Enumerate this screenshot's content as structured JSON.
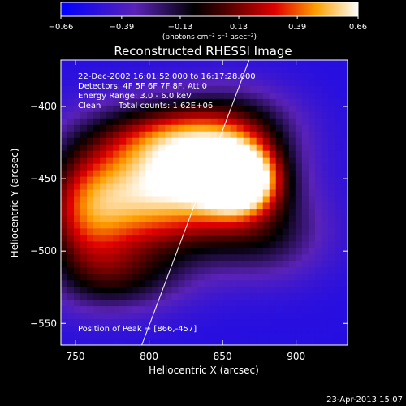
{
  "chart_data": {
    "type": "heatmap",
    "title": "Reconstructed RHESSI Image",
    "xlabel": "Heliocentric X (arcsec)",
    "ylabel": "Heliocentric Y (arcsec)",
    "xlim": [
      740,
      935
    ],
    "ylim": [
      -565,
      -368
    ],
    "xticks": [
      750,
      800,
      850,
      900
    ],
    "yticks": [
      -400,
      -450,
      -500,
      -550
    ],
    "xtick_labels": [
      "750",
      "800",
      "850",
      "900"
    ],
    "ytick_labels": [
      "−400",
      "−450",
      "−500",
      "−550"
    ],
    "colorbar": {
      "range": [
        -0.66,
        0.66
      ],
      "tick_values": [
        -0.66,
        -0.39,
        -0.13,
        0.13,
        0.39,
        0.66
      ],
      "tick_labels": [
        "−0.66",
        "−0.39",
        "−0.13",
        "0.13",
        "0.39",
        "0.66"
      ],
      "units_label": "(photons cm⁻² s⁻¹ asec⁻²)"
    },
    "annotations": {
      "time_range": "22-Dec-2002 16:01:52.000 to 16:17:28.000",
      "detectors": "Detectors: 4F 5F 6F 7F 8F, Att 0",
      "energy": "Energy Range: 3.0 - 6.0 keV",
      "method": "Clean",
      "total_counts": "Total counts: 1.62E+06",
      "peak": "Position of Peak = [866,-457]"
    },
    "peak_position": [
      866,
      -457
    ],
    "sources": [
      {
        "x": 862,
        "y": -450,
        "amp": 0.7,
        "sx": 18,
        "sy": 16
      },
      {
        "x": 835,
        "y": -450,
        "amp": 0.5,
        "sx": 38,
        "sy": 28
      },
      {
        "x": 790,
        "y": -465,
        "amp": 0.42,
        "sx": 36,
        "sy": 34
      },
      {
        "x": 755,
        "y": -475,
        "amp": 0.32,
        "sx": 22,
        "sy": 32
      },
      {
        "x": 820,
        "y": -420,
        "amp": 0.26,
        "sx": 38,
        "sy": 16
      },
      {
        "x": 880,
        "y": -490,
        "amp": 0.2,
        "sx": 30,
        "sy": 22
      },
      {
        "x": 780,
        "y": -520,
        "amp": 0.18,
        "sx": 30,
        "sy": 16
      },
      {
        "x": 860,
        "y": -410,
        "amp": 0.16,
        "sx": 30,
        "sy": 20
      }
    ],
    "background_level": -0.52,
    "limb_line": [
      [
        868,
        -368
      ],
      [
        795,
        -565
      ]
    ],
    "grid": false
  },
  "footer": {
    "date": "23-Apr-2013 15:07"
  },
  "colors": {
    "background": "#000000",
    "text": "#ffffff",
    "limb": "#ffffff"
  }
}
